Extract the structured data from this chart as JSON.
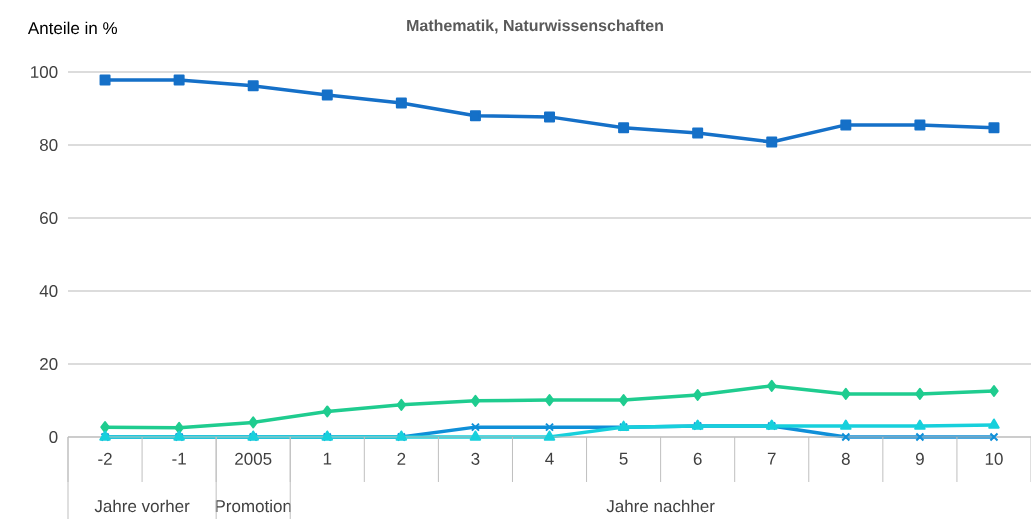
{
  "chart_data": {
    "type": "line",
    "title": "Mathematik, Naturwissenschaften",
    "ylabel": "Anteile in %",
    "categories": [
      "-2",
      "-1",
      "2005",
      "1",
      "2",
      "3",
      "4",
      "5",
      "6",
      "7",
      "8",
      "9",
      "10"
    ],
    "annotations": [
      "Jahre vorher",
      "Promotion",
      "Jahre nachher"
    ],
    "ylim": [
      0,
      100
    ],
    "yticks": [
      0,
      20,
      40,
      60,
      80,
      100
    ],
    "grid": "y",
    "series": [
      {
        "color": "#1570c8",
        "marker": "square",
        "values": [
          97.8,
          97.8,
          96.2,
          93.7,
          91.5,
          88,
          87.7,
          84.7,
          83.3,
          80.8,
          85.5,
          85.5,
          84.7
        ]
      },
      {
        "color": "#1fcc8f",
        "marker": "diamond",
        "values": [
          2.7,
          2.5,
          4,
          7,
          8.8,
          9.9,
          10.1,
          10.1,
          11.5,
          14,
          11.8,
          11.8,
          12.6
        ]
      },
      {
        "color": "#0f8fd8",
        "marker": "cross",
        "values": [
          0,
          0,
          0,
          0,
          0,
          2.7,
          2.7,
          2.7,
          3,
          3,
          0,
          0,
          0
        ]
      },
      {
        "color": "#17d0dc",
        "marker": "triangle",
        "values": [
          0,
          0,
          0,
          0,
          0,
          0,
          0,
          2.7,
          3,
          3,
          3,
          3,
          3.3
        ]
      }
    ]
  }
}
